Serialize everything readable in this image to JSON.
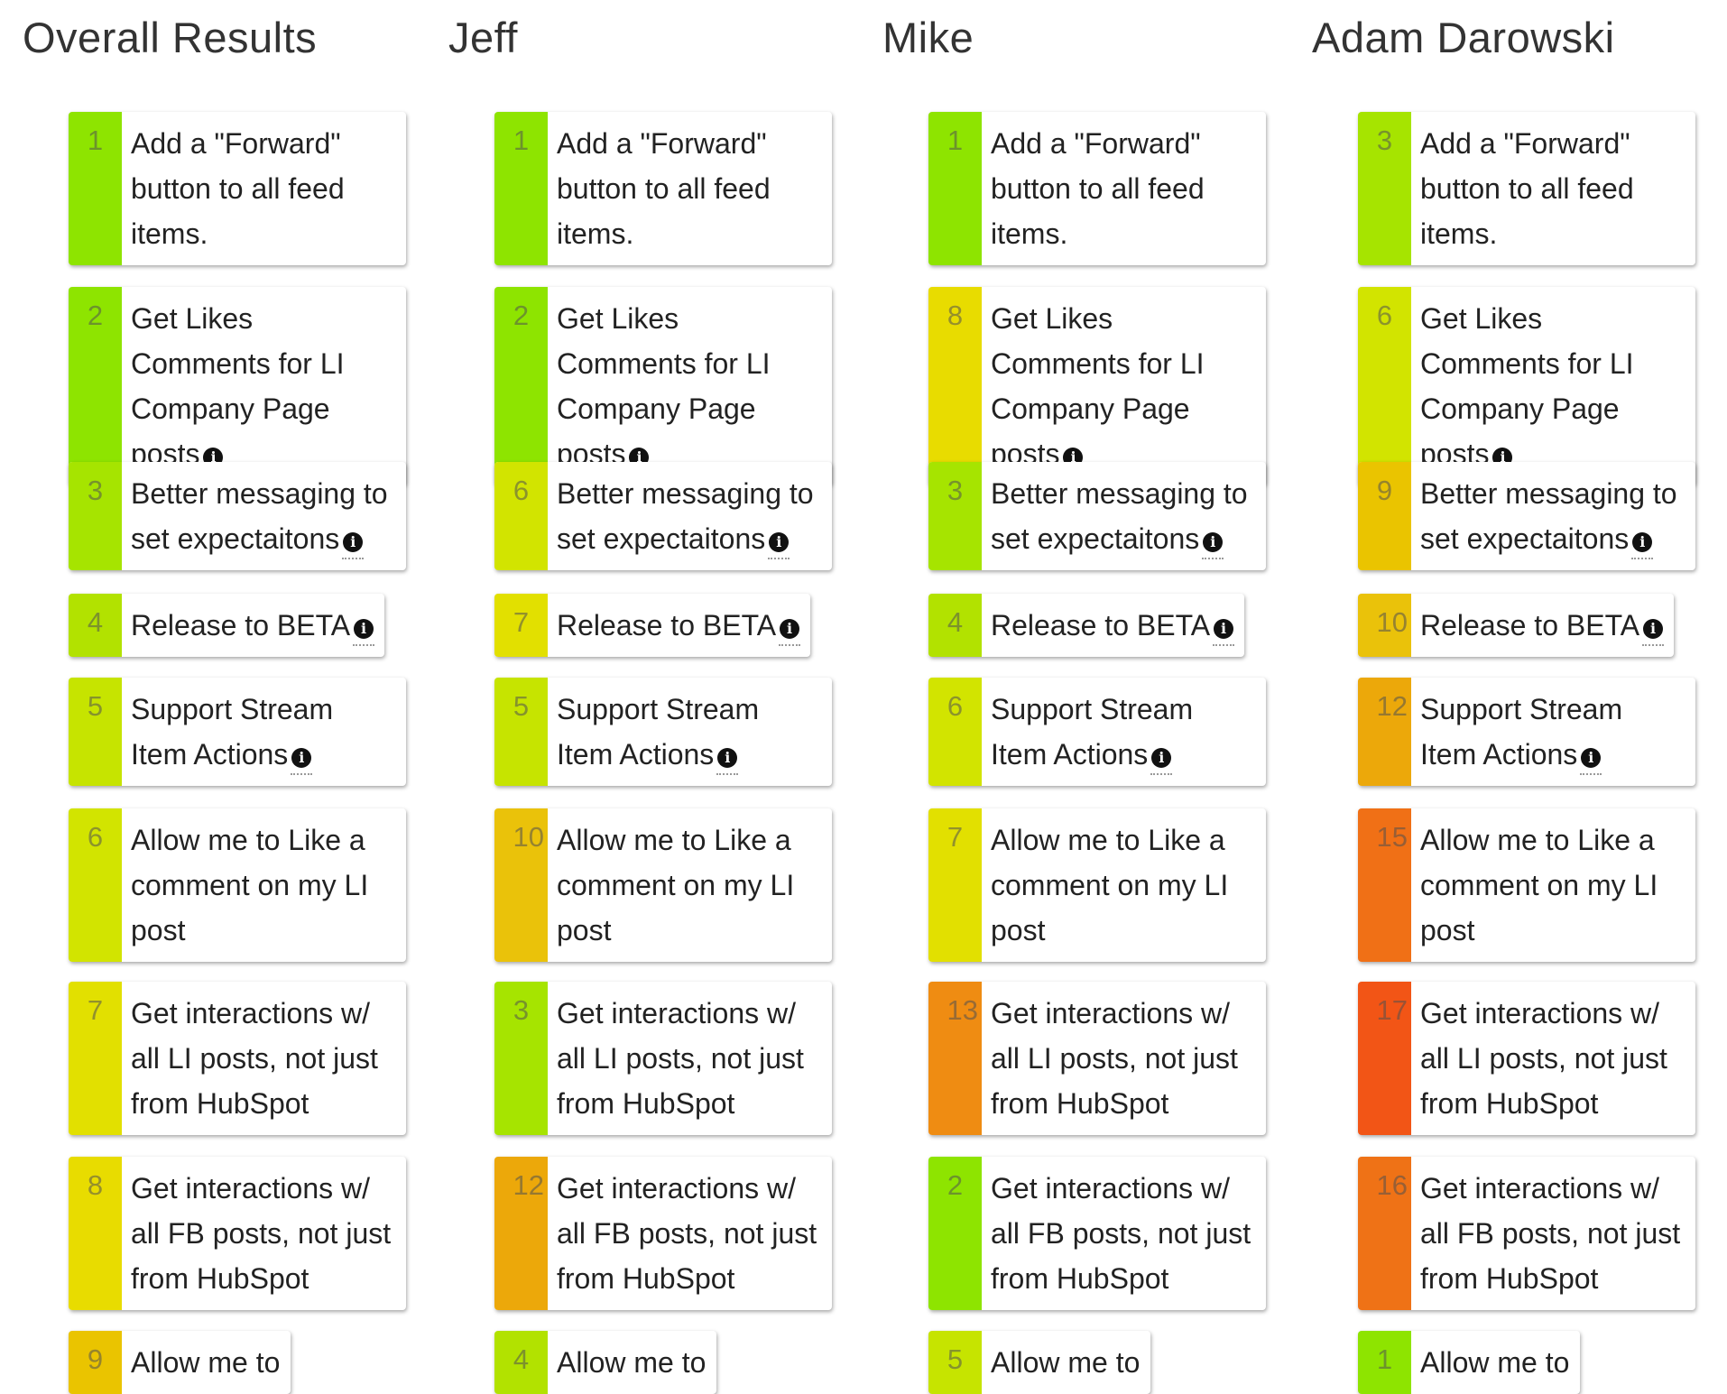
{
  "rank_colors": {
    "1": "#8ee400",
    "2": "#8ee400",
    "3": "#a6e400",
    "4": "#b2e200",
    "5": "#c6e400",
    "6": "#d2e400",
    "7": "#e2e000",
    "8": "#e8dc00",
    "9": "#eac400",
    "10": "#eac20a",
    "12": "#eca80a",
    "13": "#ef8c12",
    "15": "#f07016",
    "16": "#ef7216",
    "17": "#f25516"
  },
  "info_icon": "info-circle-icon",
  "columns": [
    {
      "title": "Overall Results",
      "items": [
        {
          "rank": "1",
          "label": "Add a \"Forward\" button to all feed items.",
          "info": false
        },
        {
          "rank": "2",
          "label": "Get Likes Comments for LI Company Page posts",
          "info": true
        },
        {
          "rank": "3",
          "label": "Better messaging to set expectaitons",
          "info": true
        },
        {
          "rank": "4",
          "label": "Release to BETA",
          "info": true
        },
        {
          "rank": "5",
          "label": "Support Stream Item Actions",
          "info": true
        },
        {
          "rank": "6",
          "label": "Allow me to Like a comment on my LI post",
          "info": false
        },
        {
          "rank": "7",
          "label": "Get interactions w/ all LI posts, not just from HubSpot",
          "info": false
        },
        {
          "rank": "8",
          "label": "Get interactions w/ all FB posts, not just from HubSpot",
          "info": false
        },
        {
          "rank": "9",
          "label": "Allow me to",
          "info": false
        }
      ]
    },
    {
      "title": "Jeff",
      "items": [
        {
          "rank": "1",
          "label": "Add a \"Forward\" button to all feed items.",
          "info": false
        },
        {
          "rank": "2",
          "label": "Get Likes Comments for LI Company Page posts",
          "info": true
        },
        {
          "rank": "6",
          "label": "Better messaging to set expectaitons",
          "info": true
        },
        {
          "rank": "7",
          "label": "Release to BETA",
          "info": true
        },
        {
          "rank": "5",
          "label": "Support Stream Item Actions",
          "info": true
        },
        {
          "rank": "10",
          "label": "Allow me to Like a comment on my LI post",
          "info": false
        },
        {
          "rank": "3",
          "label": "Get interactions w/ all LI posts, not just from HubSpot",
          "info": false
        },
        {
          "rank": "12",
          "label": "Get interactions w/ all FB posts, not just from HubSpot",
          "info": false
        },
        {
          "rank": "4",
          "label": "Allow me to",
          "info": false
        }
      ]
    },
    {
      "title": "Mike",
      "items": [
        {
          "rank": "1",
          "label": "Add a \"Forward\" button to all feed items.",
          "info": false
        },
        {
          "rank": "8",
          "label": "Get Likes Comments for LI Company Page posts",
          "info": true
        },
        {
          "rank": "3",
          "label": "Better messaging to set expectaitons",
          "info": true
        },
        {
          "rank": "4",
          "label": "Release to BETA",
          "info": true
        },
        {
          "rank": "6",
          "label": "Support Stream Item Actions",
          "info": true
        },
        {
          "rank": "7",
          "label": "Allow me to Like a comment on my LI post",
          "info": false
        },
        {
          "rank": "13",
          "label": "Get interactions w/ all LI posts, not just from HubSpot",
          "info": false
        },
        {
          "rank": "2",
          "label": "Get interactions w/ all FB posts, not just from HubSpot",
          "info": false
        },
        {
          "rank": "5",
          "label": "Allow me to",
          "info": false
        }
      ]
    },
    {
      "title": "Adam Darowski",
      "items": [
        {
          "rank": "3",
          "label": "Add a \"Forward\" button to all feed items.",
          "info": false
        },
        {
          "rank": "6",
          "label": "Get Likes Comments for LI Company Page posts",
          "info": true
        },
        {
          "rank": "9",
          "label": "Better messaging to set expectaitons",
          "info": true
        },
        {
          "rank": "10",
          "label": "Release to BETA",
          "info": true
        },
        {
          "rank": "12",
          "label": "Support Stream Item Actions",
          "info": true
        },
        {
          "rank": "15",
          "label": "Allow me to Like a comment on my LI post",
          "info": false
        },
        {
          "rank": "17",
          "label": "Get interactions w/ all LI posts, not just from HubSpot",
          "info": false
        },
        {
          "rank": "16",
          "label": "Get interactions w/ all FB posts, not just from HubSpot",
          "info": false
        },
        {
          "rank": "1",
          "label": "Allow me to",
          "info": false
        }
      ]
    }
  ]
}
